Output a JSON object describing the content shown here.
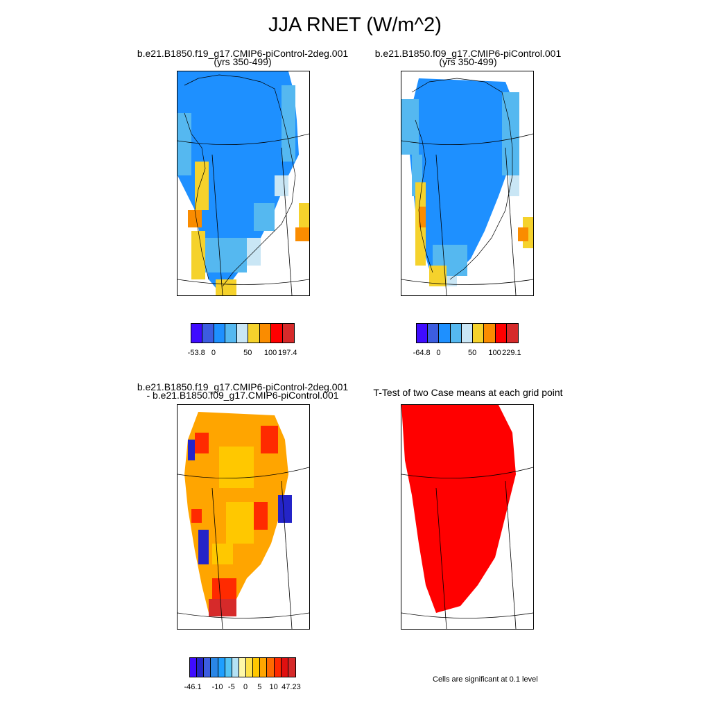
{
  "page": {
    "title": "JJA RNET (W/m^2)"
  },
  "panels": [
    {
      "title_line1": "b.e21.B1850.f19_g17.CMIP6-piControl-2deg.001",
      "title_line2": "(yrs 350-499)"
    },
    {
      "title_line1": "b.e21.B1850.f09_g17.CMIP6-piControl.001",
      "title_line2": "(yrs 350-499)"
    },
    {
      "title_line1": "b.e21.B1850.f19_g17.CMIP6-piControl-2deg.001",
      "title_line2": "- b.e21.B1850.f09_g17.CMIP6-piControl.001"
    },
    {
      "title_line1": "T-Test of two Case means at each grid point",
      "title_line2": ""
    }
  ],
  "colorbars": [
    {
      "colors": [
        "#3f0cff",
        "#3c5de0",
        "#1e90ff",
        "#55b8f0",
        "#c9e6f5",
        "#f5d22c",
        "#fa8c00",
        "#ff0000",
        "#d62a2a"
      ],
      "labels": [
        "-53.8",
        "0",
        "50",
        "100",
        "197.4"
      ]
    },
    {
      "colors": [
        "#3f0cff",
        "#3c5de0",
        "#1e90ff",
        "#55b8f0",
        "#c9e6f5",
        "#f5d22c",
        "#fa8c00",
        "#ff0000",
        "#d62a2a"
      ],
      "labels": [
        "-64.8",
        "0",
        "50",
        "100",
        "229.1"
      ]
    },
    {
      "colors": [
        "#3f0cff",
        "#2424c8",
        "#3c5de0",
        "#2a86e6",
        "#1e9fff",
        "#55c4f4",
        "#b4e2f5",
        "#fff8a8",
        "#ffe24a",
        "#ffc800",
        "#ffa500",
        "#ff6a00",
        "#ff2a00",
        "#e01010",
        "#d62a2a"
      ],
      "labels": [
        "-46.1",
        "-10",
        "-5",
        "0",
        "5",
        "10",
        "47.23"
      ]
    }
  ],
  "ttest": {
    "note": "Cells are significant at 0.1 level"
  },
  "map_colors": {
    "ocean": "#ffffff",
    "ice_cap": "#1e90ff",
    "margin_light": "#55b8f0",
    "margin_pale": "#c9e6f5",
    "coast_yellow": "#f5d22c",
    "coast_orange": "#fa8c00",
    "diff_main": "#ffa500",
    "diff_light": "#ffc800",
    "diff_red": "#ff2a00",
    "diff_dark": "#d62a2a",
    "diff_blue": "#2424c8",
    "significant": "#ff0000"
  }
}
